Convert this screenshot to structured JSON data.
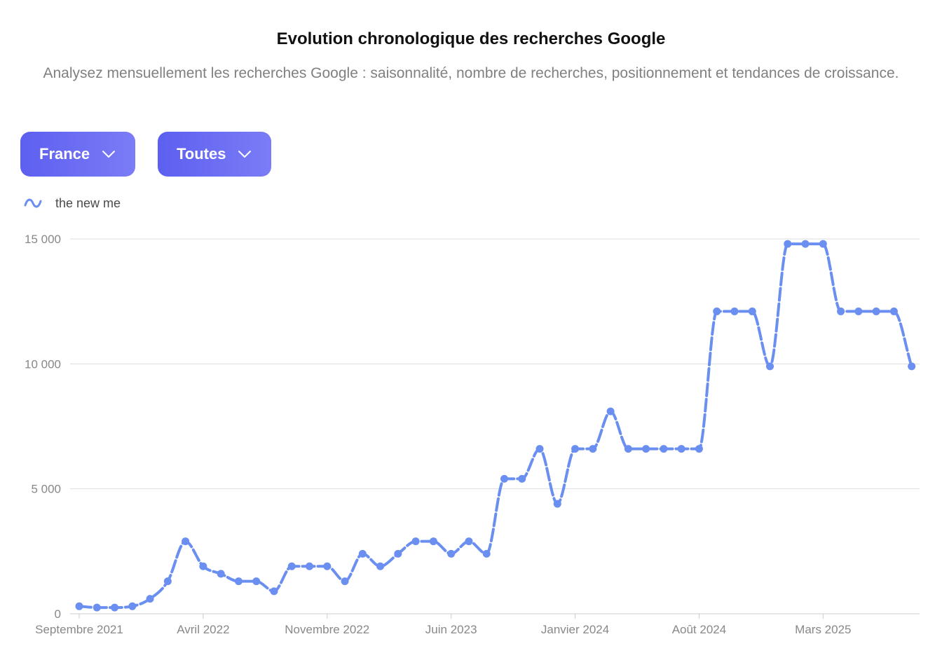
{
  "header": {
    "title": "Evolution chronologique des recherches Google",
    "subtitle": "Analysez mensuellement les recherches Google : saisonnalité, nombre de recherches, positionnement et tendances de croissance."
  },
  "filters": {
    "country": "France",
    "type": "Toutes"
  },
  "colors": {
    "accent": "#6366f1",
    "series": "#6b8ff0",
    "grid": "#dddddd"
  },
  "chart_data": {
    "type": "line",
    "series": [
      {
        "name": "the new me",
        "values": [
          300,
          250,
          250,
          300,
          600,
          1300,
          2900,
          1900,
          1600,
          1300,
          1300,
          900,
          1900,
          1900,
          1900,
          1300,
          2400,
          1900,
          2400,
          2900,
          2900,
          2400,
          2900,
          2400,
          5400,
          5400,
          6600,
          4400,
          6600,
          6600,
          8100,
          6600,
          6600,
          6600,
          6600,
          6600,
          12100,
          12100,
          12100,
          9900,
          14800,
          14800,
          14800,
          12100,
          12100,
          12100,
          12100,
          9900
        ]
      }
    ],
    "x_tick_labels": [
      "Septembre 2021",
      "Avril 2022",
      "Novembre 2022",
      "Juin 2023",
      "Janvier 2024",
      "Août 2024",
      "Mars 2025"
    ],
    "x_tick_indices": [
      0,
      7,
      14,
      21,
      28,
      35,
      42
    ],
    "y_ticks": [
      0,
      5000,
      10000,
      15000
    ],
    "y_tick_labels": [
      "0",
      "5 000",
      "10 000",
      "15 000"
    ],
    "ylim": [
      0,
      15000
    ],
    "grid": true,
    "legend_position": "top-left"
  }
}
